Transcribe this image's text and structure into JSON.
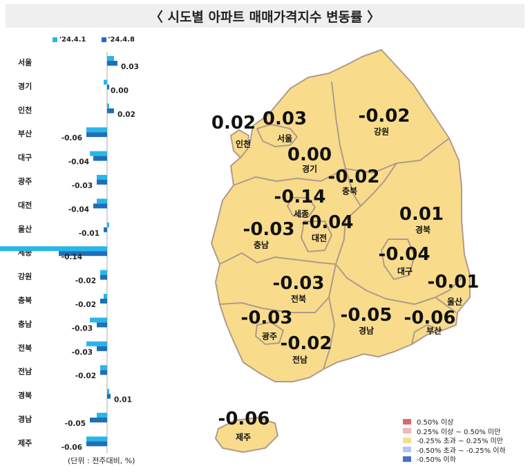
{
  "title": "〈 시도별 아파트 매매가격지수 변동률 〉",
  "legend_top": [
    {
      "label": "'24.4.1",
      "color": "#29b6e8"
    },
    {
      "label": "'24.4.8",
      "color": "#1f6fb8"
    }
  ],
  "unit_note": "(단위 : 전주대비, %)",
  "chart_data": {
    "type": "bar",
    "orientation": "horizontal",
    "categories": [
      "서울",
      "경기",
      "인천",
      "부산",
      "대구",
      "광주",
      "대전",
      "울산",
      "세종",
      "강원",
      "충북",
      "충남",
      "전북",
      "전남",
      "경북",
      "경남",
      "제주"
    ],
    "series": [
      {
        "name": "'24.4.1",
        "values": [
          0.02,
          -0.01,
          0.0,
          -0.06,
          -0.05,
          -0.03,
          -0.03,
          0.0,
          -0.41,
          -0.02,
          -0.01,
          -0.05,
          -0.06,
          -0.02,
          0.0,
          -0.03,
          -0.06
        ]
      },
      {
        "name": "'24.4.8",
        "values": [
          0.03,
          0.0,
          0.02,
          -0.06,
          -0.04,
          -0.03,
          -0.04,
          -0.01,
          -0.14,
          -0.02,
          -0.02,
          -0.03,
          -0.03,
          -0.02,
          0.01,
          -0.05,
          -0.06
        ]
      }
    ],
    "value_labels": [
      "0.03",
      "0.00",
      "0.02",
      "-0.06",
      "-0.04",
      "-0.03",
      "-0.04",
      "-0.01",
      "-0.14",
      "-0.02",
      "-0.02",
      "-0.03",
      "-0.03",
      "-0.02",
      "0.01",
      "-0.05",
      "-0.06"
    ]
  },
  "map": {
    "fill_color": "#f8dc8c",
    "border_color": "#b09a8a",
    "regions": [
      {
        "name": "인천",
        "value": "0.02"
      },
      {
        "name": "서울",
        "value": "0.03"
      },
      {
        "name": "경기",
        "value": "0.00"
      },
      {
        "name": "강원",
        "value": "-0.02"
      },
      {
        "name": "충북",
        "value": "-0.02"
      },
      {
        "name": "세종",
        "value": "-0.14"
      },
      {
        "name": "대전",
        "value": "-0.04"
      },
      {
        "name": "충남",
        "value": "-0.03"
      },
      {
        "name": "경북",
        "value": "0.01"
      },
      {
        "name": "대구",
        "value": "-0.04"
      },
      {
        "name": "울산",
        "value": "-0.01"
      },
      {
        "name": "전북",
        "value": "-0.03"
      },
      {
        "name": "경남",
        "value": "-0.05"
      },
      {
        "name": "부산",
        "value": "-0.06"
      },
      {
        "name": "광주",
        "value": "-0.03"
      },
      {
        "name": "전남",
        "value": "-0.02"
      },
      {
        "name": "제주",
        "value": "-0.06"
      }
    ]
  },
  "map_legend": [
    {
      "label": "0.50% 이상",
      "color": "#e06666"
    },
    {
      "label": "0.25% 이상 ~ 0.50% 미만",
      "color": "#f4b6b6"
    },
    {
      "label": "-0.25% 초과 ~ 0.25% 미만",
      "color": "#f8dc8c"
    },
    {
      "label": "-0.50% 초과 ~ -0.25% 이하",
      "color": "#b4c7e7"
    },
    {
      "label": "-0.50% 이하",
      "color": "#4472c4"
    }
  ]
}
